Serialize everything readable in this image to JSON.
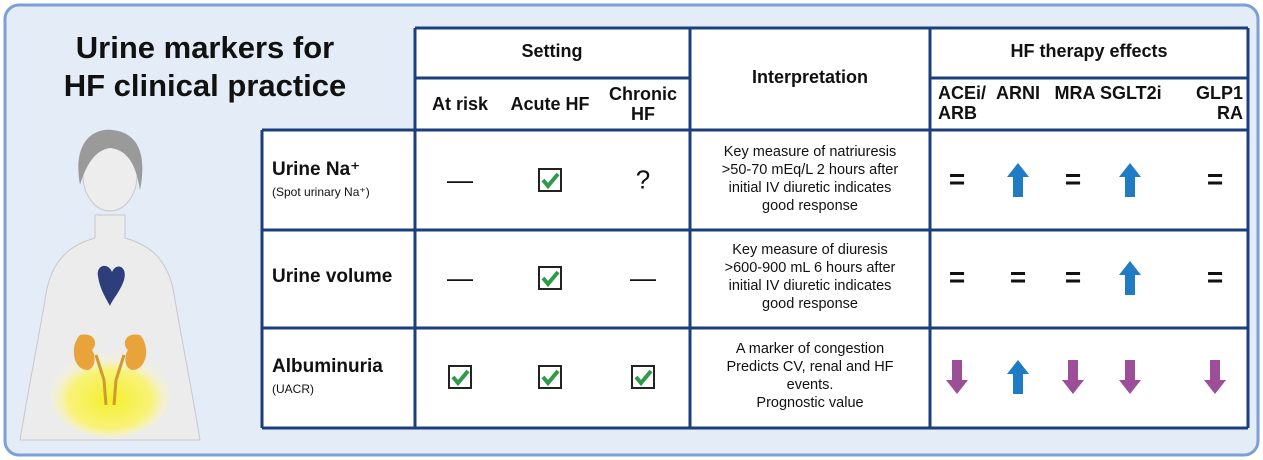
{
  "title": [
    "Urine markers for",
    "HF clinical practice"
  ],
  "table": {
    "header": {
      "setting": "Setting",
      "interpretation": "Interpretation",
      "therapy": "HF therapy effects",
      "setting_columns": [
        "At risk",
        "Acute HF",
        "Chronic HF"
      ],
      "therapy_columns": [
        "ACEi/ ARB",
        "ARNI",
        "MRA",
        "SGLT2i",
        "GLP1 RA"
      ]
    },
    "rows": [
      {
        "marker": "Urine Na⁺",
        "note": "(Spot urinary Na⁺)",
        "setting": {
          "at_risk": "—",
          "chronic_hf": "?"
        },
        "interpretation": [
          "Key measure of natriuresis",
          ">50-70 mEq/L 2 hours after",
          "initial IV diuretic indicates",
          "good response"
        ],
        "therapy": {
          "acei_arb": "=",
          "mra": "=",
          "glp1_ra": "="
        }
      },
      {
        "marker": "Urine volume",
        "setting": {
          "at_risk": "—",
          "chronic_hf": "—"
        },
        "interpretation": [
          "Key measure of diuresis",
          ">600-900 mL 6 hours after",
          "initial IV diuretic  indicates",
          "good response"
        ],
        "therapy": {
          "acei_arb": "=",
          "arni": "=",
          "mra": "=",
          "glp1_ra": "="
        }
      },
      {
        "marker": "Albuminuria",
        "note": "(UACR)",
        "interpretation": [
          "A marker of congestion",
          "Predicts CV, renal and HF",
          "events.",
          "Prognostic value"
        ]
      }
    ]
  }
}
